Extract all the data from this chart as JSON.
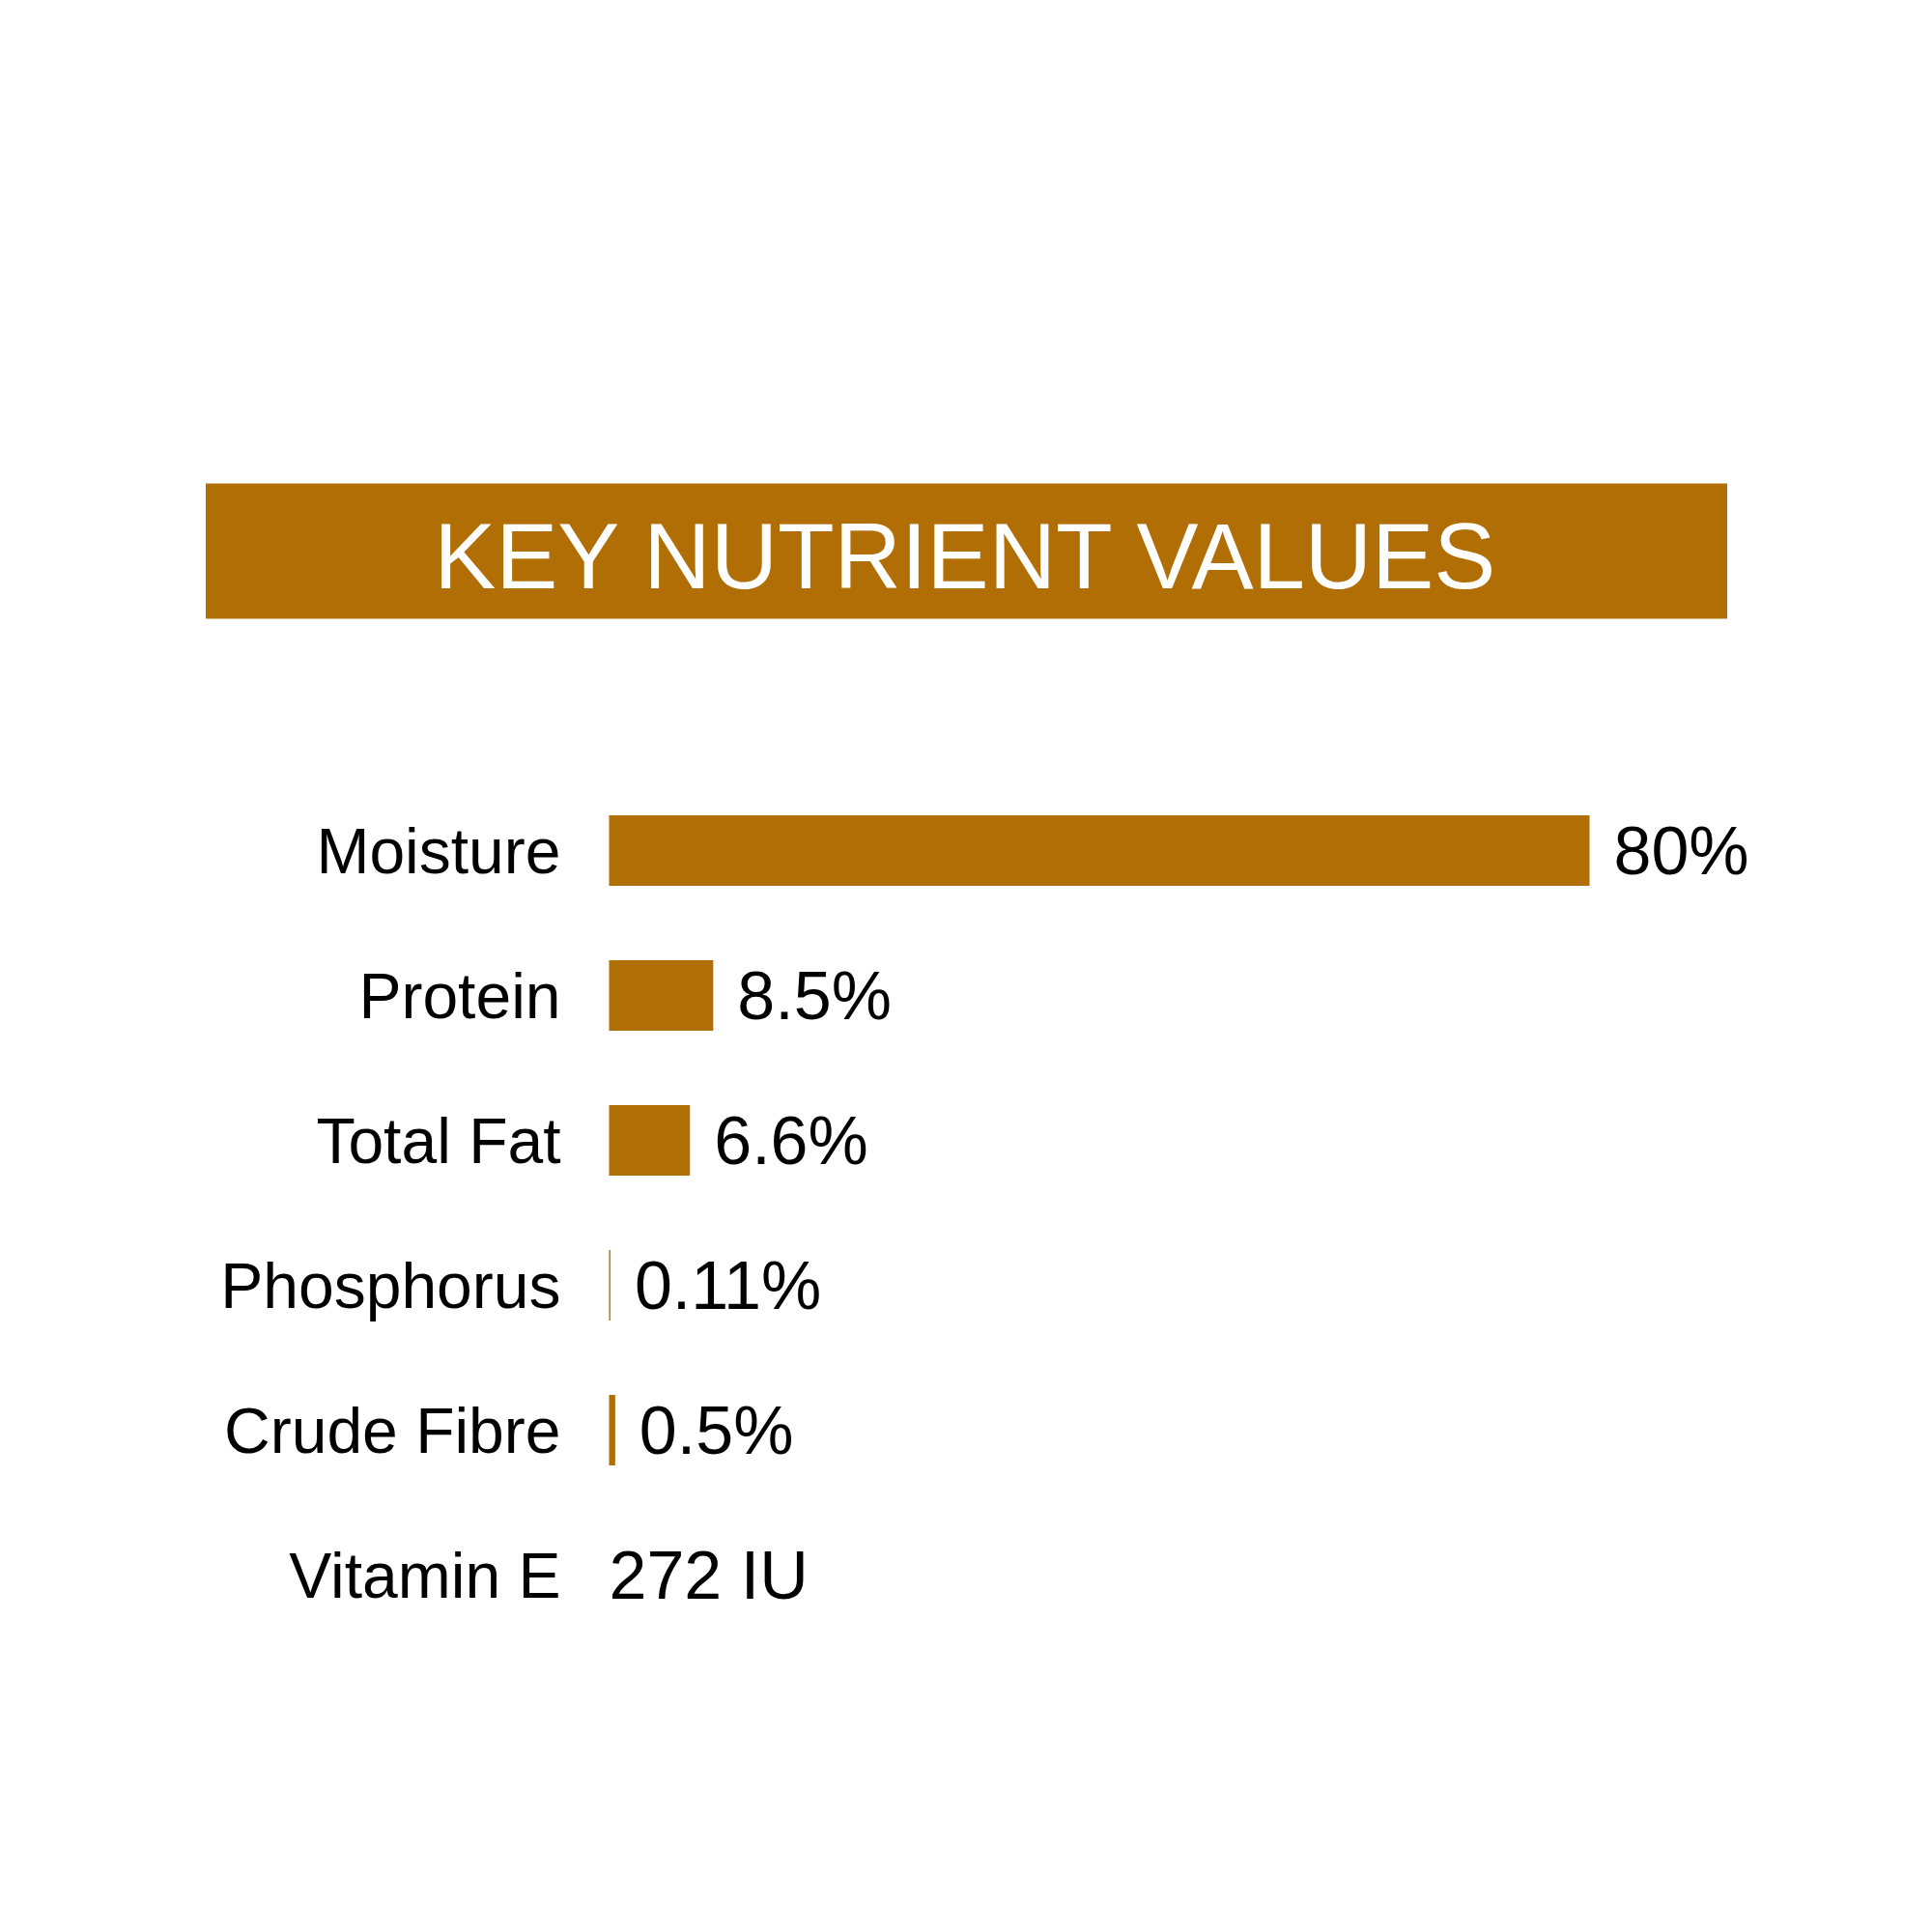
{
  "chart_data": {
    "type": "bar",
    "orientation": "horizontal",
    "title": "KEY NUTRIENT VALUES",
    "categories": [
      "Moisture",
      "Protein",
      "Total Fat",
      "Phosphorus",
      "Crude Fibre",
      "Vitamin E"
    ],
    "values": [
      80,
      8.5,
      6.6,
      0.11,
      0.5,
      null
    ],
    "value_labels": [
      "80%",
      "8.5%",
      "6.6%",
      "0.11%",
      "0.5%",
      "272 IU"
    ],
    "color": "#b06e05"
  }
}
